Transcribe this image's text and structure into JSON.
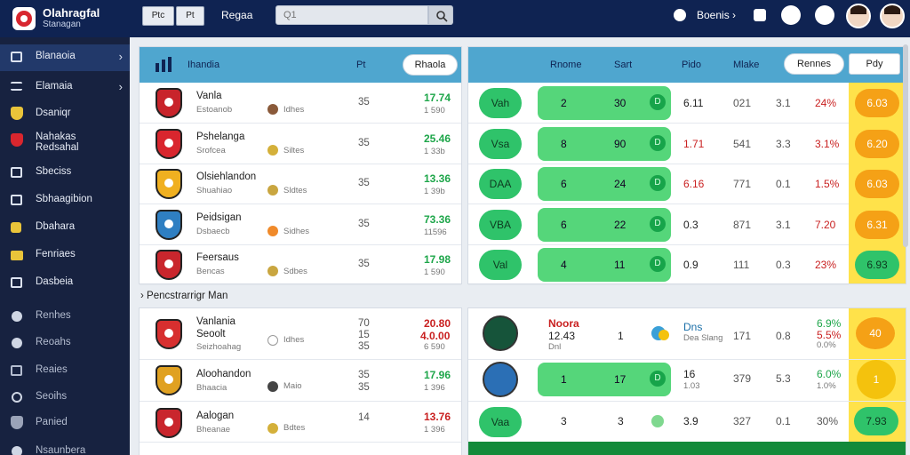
{
  "app": {
    "name": "Olahragfal",
    "subtitle": "Stanagan"
  },
  "toolbar": {
    "btn1": "Ptc",
    "btn2": "Pt",
    "search_label": "Regaa",
    "search_placeholder": "Q1",
    "account": "Boenis"
  },
  "sidebar": {
    "items": [
      {
        "label": "Blanaoia"
      },
      {
        "label": "Elamaia"
      },
      {
        "label": "Dsaniqr"
      },
      {
        "label": "Nahakas Redsahal"
      },
      {
        "label": "Sbeciss"
      },
      {
        "label": "Sbhaagibion"
      },
      {
        "label": "Dbahara"
      },
      {
        "label": "Fenriaes"
      },
      {
        "label": "Dasbeia"
      },
      {
        "label": "Renhes"
      },
      {
        "label": "Reoahs"
      },
      {
        "label": "Reaies"
      },
      {
        "label": "Seoihs"
      },
      {
        "label": "Panied"
      },
      {
        "label": "Nsaunbera"
      }
    ]
  },
  "left_panel": {
    "header": {
      "title": "Ihandia",
      "col": "Pt",
      "button": "Rhaola"
    },
    "rows": [
      {
        "name": "Vanla",
        "sub": "Estoanob",
        "coin_label": "Idhes",
        "num": "35",
        "odd_a": "17.74",
        "odd_b": "1 590",
        "odd_color": "#1ea64a",
        "crest": "#c8242b"
      },
      {
        "name": "Pshelanga",
        "sub": "Srofcea",
        "coin_label": "Siltes",
        "num": "35",
        "odd_a": "25.46",
        "odd_b": "1 33b",
        "odd_color": "#1ea64a",
        "crest": "#d9262e"
      },
      {
        "name": "Olsiehlandon",
        "sub": "Shuahiao",
        "coin_label": "Sldtes",
        "num": "35",
        "odd_a": "13.36",
        "odd_b": "1 39b",
        "odd_color": "#1ea64a",
        "crest": "#f0b020"
      },
      {
        "name": "Peidsigan",
        "sub": "Dsbaecb",
        "coin_label": "Sidhes",
        "num": "35",
        "odd_a": "73.36",
        "odd_b": "11596",
        "odd_color": "#1ea64a",
        "crest": "#2f7fc2"
      },
      {
        "name": "Feersaus",
        "sub": "Bencas",
        "coin_label": "Sdbes",
        "num": "35",
        "odd_a": "17.98",
        "odd_b": "1 590",
        "odd_color": "#1ea64a",
        "crest": "#c9262d"
      }
    ]
  },
  "right_panel": {
    "header": {
      "c1": "Rnome",
      "c2": "Sart",
      "c3": "Pido",
      "c4": "Mlake",
      "btn1": "Rennes",
      "btn2": "Pdy"
    },
    "rows": [
      {
        "pill": "Vah",
        "a": "2",
        "b": "30",
        "c": "D",
        "v1": "6.11",
        "v1c": "#222",
        "v2": "021",
        "v3": "3.1",
        "v4": "24%",
        "odd": "6.03",
        "odd_type": "orange"
      },
      {
        "pill": "Vsa",
        "a": "8",
        "b": "90",
        "c": "D",
        "v1": "1.71",
        "v1c": "#c92020",
        "v2": "541",
        "v3": "3.3",
        "v4": "3.1%",
        "odd": "6.20",
        "odd_type": "orange"
      },
      {
        "pill": "DAA",
        "a": "6",
        "b": "24",
        "c": "D",
        "v1": "6.16",
        "v1c": "#c92020",
        "v2": "771",
        "v3": "0.1",
        "v4": "1.5%",
        "odd": "6.03",
        "odd_type": "orange"
      },
      {
        "pill": "VBA",
        "a": "6",
        "b": "22",
        "c": "D",
        "v1": "0.3",
        "v1c": "#222",
        "v2": "871",
        "v3": "3.1",
        "v4": "7.20",
        "odd": "6.31",
        "odd_type": "orange"
      },
      {
        "pill": "Val",
        "a": "4",
        "b": "11",
        "c": "D",
        "v1": "0.9",
        "v1c": "#222",
        "v2": "111",
        "v3": "0.3",
        "v4": "23%",
        "odd": "6.93",
        "odd_type": "green"
      }
    ]
  },
  "section2": {
    "title": "Pencstrarrigr Man"
  },
  "left_panel2": {
    "rows": [
      {
        "name": "Vanlania",
        "sub": "Seoolt",
        "sub2": "Seizhoahag",
        "coin_label": "Idhes",
        "num": "70",
        "num2": "15",
        "num3": "35",
        "odd_a": "20.80",
        "odd_a2": "4.0.00",
        "odd_b": "6 590",
        "odd_color": "#c92020",
        "crest": "#d72f2f"
      },
      {
        "name": "Aloohandon",
        "sub": "Bhaacia",
        "coin_label": "Maio",
        "num": "35",
        "num2": "35",
        "odd_a": "17.96",
        "odd_b": "1 396",
        "odd_color": "#1ea64a",
        "crest": "#e0a121"
      },
      {
        "name": "Aalogan",
        "sub": "Bheanae",
        "coin_label": "Bdtes",
        "num": "14",
        "odd_a": "13.76",
        "odd_b": "1 396",
        "odd_color": "#c92020",
        "crest": "#c9262d"
      }
    ]
  },
  "right_panel2": {
    "row1": {
      "title": "Noora",
      "value": "12.43",
      "sub": "Dnl",
      "num": "1",
      "coin_label": "Dns",
      "coin_sub": "Dea Slang",
      "v1": "171",
      "v2": "0.8",
      "v3": "6.9%",
      "v3b": "5.5%",
      "v3c": "0.0%",
      "odd": "40"
    },
    "row2": {
      "a": "1",
      "b": "17",
      "c": "D",
      "v1": "16",
      "v1b": "1.03",
      "v2": "379",
      "v3": "5.3",
      "v4": "6.0%",
      "v4b": "1.0%",
      "odd": "1"
    },
    "row3": {
      "pill": "Vaa",
      "a": "3",
      "b": "3",
      "v1": "3.9",
      "v2": "327",
      "v3": "0.1",
      "v4": "30%",
      "odd": "7.93"
    }
  }
}
